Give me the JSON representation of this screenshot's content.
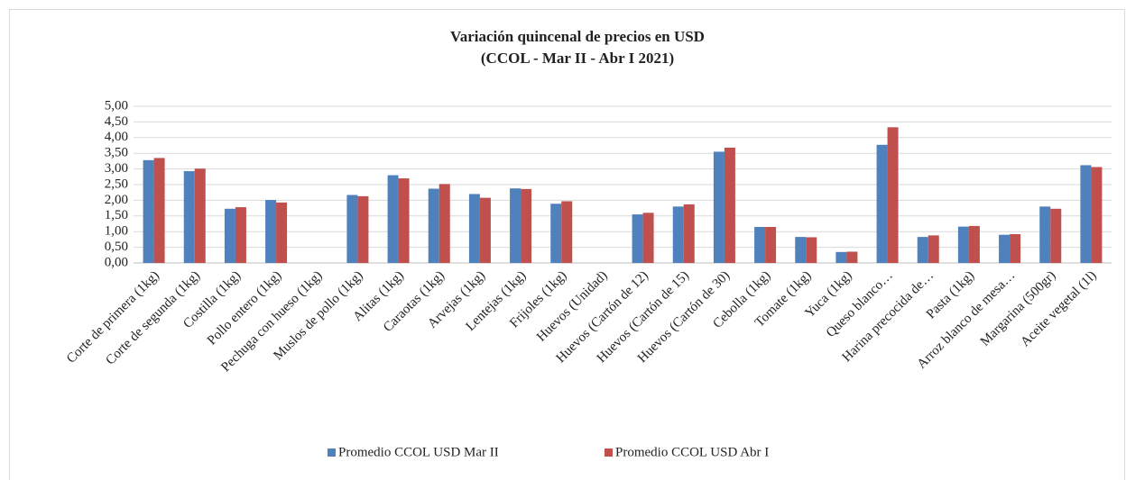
{
  "chart_data": {
    "type": "bar",
    "title": "Variación quincenal de precios en USD",
    "subtitle": "(CCOL - Mar II - Abr I 2021)",
    "categories": [
      "Corte de primera (1kg)",
      "Corte de segunda (1kg)",
      "Costilla (1kg)",
      "Pollo entero (1kg)",
      "Pechuga con hueso (1kg)",
      "Muslos de pollo (1kg)",
      "Alitas (1kg)",
      "Caraotas (1kg)",
      "Arvejas (1kg)",
      "Lentejas (1kg)",
      "Frijoles (1kg)",
      "Huevos (Unidad)",
      "Huevos (Cartón de 12)",
      "Huevos (Cartón de 15)",
      "Huevos (Cartón de 30)",
      "Cebolla (1kg)",
      "Tomate (1kg)",
      "Yuca (1kg)",
      "Queso blanco…",
      "Harina precocida de…",
      "Pasta (1kg)",
      "Arroz blanco de mesa…",
      "Margarina (500gr)",
      "Aceite vegetal (1l)"
    ],
    "series": [
      {
        "name": "Promedio CCOL USD Mar II",
        "color": "#4f81bd",
        "values": [
          3.28,
          2.93,
          1.73,
          2.01,
          null,
          2.17,
          2.8,
          2.37,
          2.2,
          2.38,
          1.89,
          null,
          1.55,
          1.8,
          3.55,
          1.15,
          0.83,
          0.35,
          3.77,
          0.83,
          1.16,
          0.9,
          1.8,
          3.12
        ]
      },
      {
        "name": "Promedio CCOL USD Abr I",
        "color": "#c0504d",
        "values": [
          3.35,
          3.01,
          1.78,
          1.93,
          null,
          2.13,
          2.7,
          2.52,
          2.08,
          2.36,
          1.97,
          null,
          1.6,
          1.87,
          3.68,
          1.15,
          0.82,
          0.36,
          4.33,
          0.88,
          1.18,
          0.92,
          1.73,
          3.06
        ]
      }
    ],
    "ylim": [
      0,
      5
    ],
    "yticks": [
      {
        "value": 0,
        "label": "0,00"
      },
      {
        "value": 0.5,
        "label": "0,50"
      },
      {
        "value": 1,
        "label": "1,00"
      },
      {
        "value": 1.5,
        "label": "1,50"
      },
      {
        "value": 2,
        "label": "2,00"
      },
      {
        "value": 2.5,
        "label": "2,50"
      },
      {
        "value": 3,
        "label": "3,00"
      },
      {
        "value": 3.5,
        "label": "3,50"
      },
      {
        "value": 4,
        "label": "4,00"
      },
      {
        "value": 4.5,
        "label": "4,50"
      },
      {
        "value": 5,
        "label": "5,00"
      }
    ],
    "legend": "bottom"
  }
}
